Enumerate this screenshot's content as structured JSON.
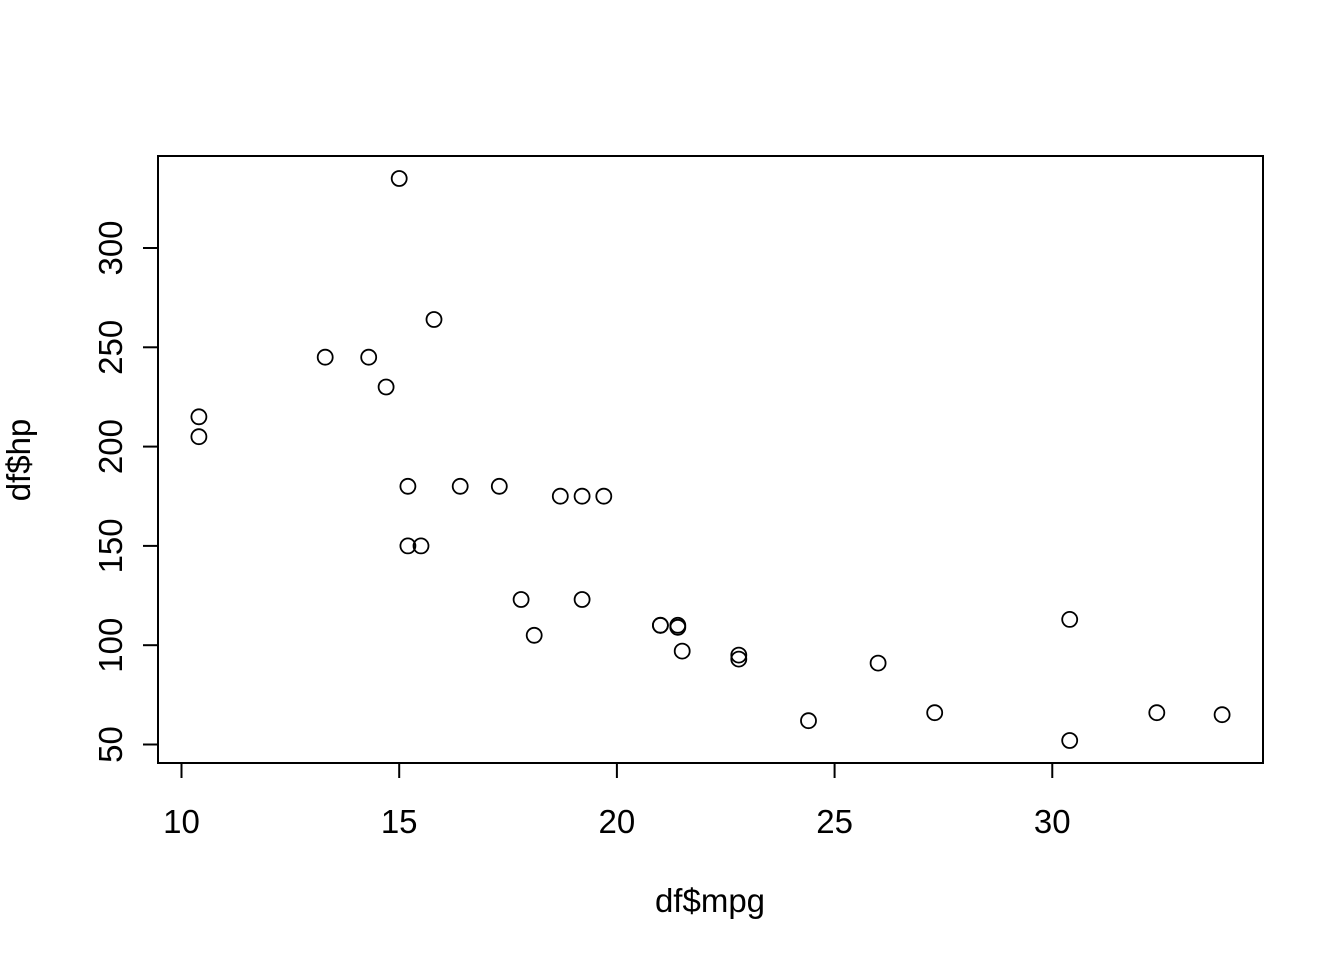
{
  "figure": {
    "background": "#ffffff",
    "foreground": "#000000"
  },
  "chart_data": {
    "type": "scatter",
    "title": "",
    "xlabel": "df$mpg",
    "ylabel": "df$hp",
    "x": [
      21.0,
      21.0,
      22.8,
      21.4,
      18.7,
      18.1,
      14.3,
      24.4,
      22.8,
      19.2,
      17.8,
      16.4,
      17.3,
      15.2,
      10.4,
      10.4,
      14.7,
      32.4,
      30.4,
      33.9,
      21.5,
      15.5,
      15.2,
      13.3,
      19.2,
      27.3,
      26.0,
      30.4,
      15.8,
      19.7,
      15.0,
      21.4
    ],
    "y": [
      110,
      110,
      93,
      110,
      175,
      105,
      245,
      62,
      95,
      123,
      123,
      180,
      180,
      180,
      205,
      215,
      230,
      66,
      52,
      65,
      97,
      150,
      150,
      245,
      175,
      66,
      91,
      113,
      264,
      175,
      335,
      109
    ],
    "x_ticks": [
      10,
      15,
      20,
      25,
      30
    ],
    "y_ticks": [
      50,
      100,
      150,
      200,
      250,
      300
    ],
    "xlim": [
      9.46,
      34.84
    ],
    "ylim": [
      40.68,
      346.32
    ],
    "grid": "off",
    "legend": "none",
    "marker": {
      "shape": "open-circle",
      "color": "#000000"
    }
  }
}
